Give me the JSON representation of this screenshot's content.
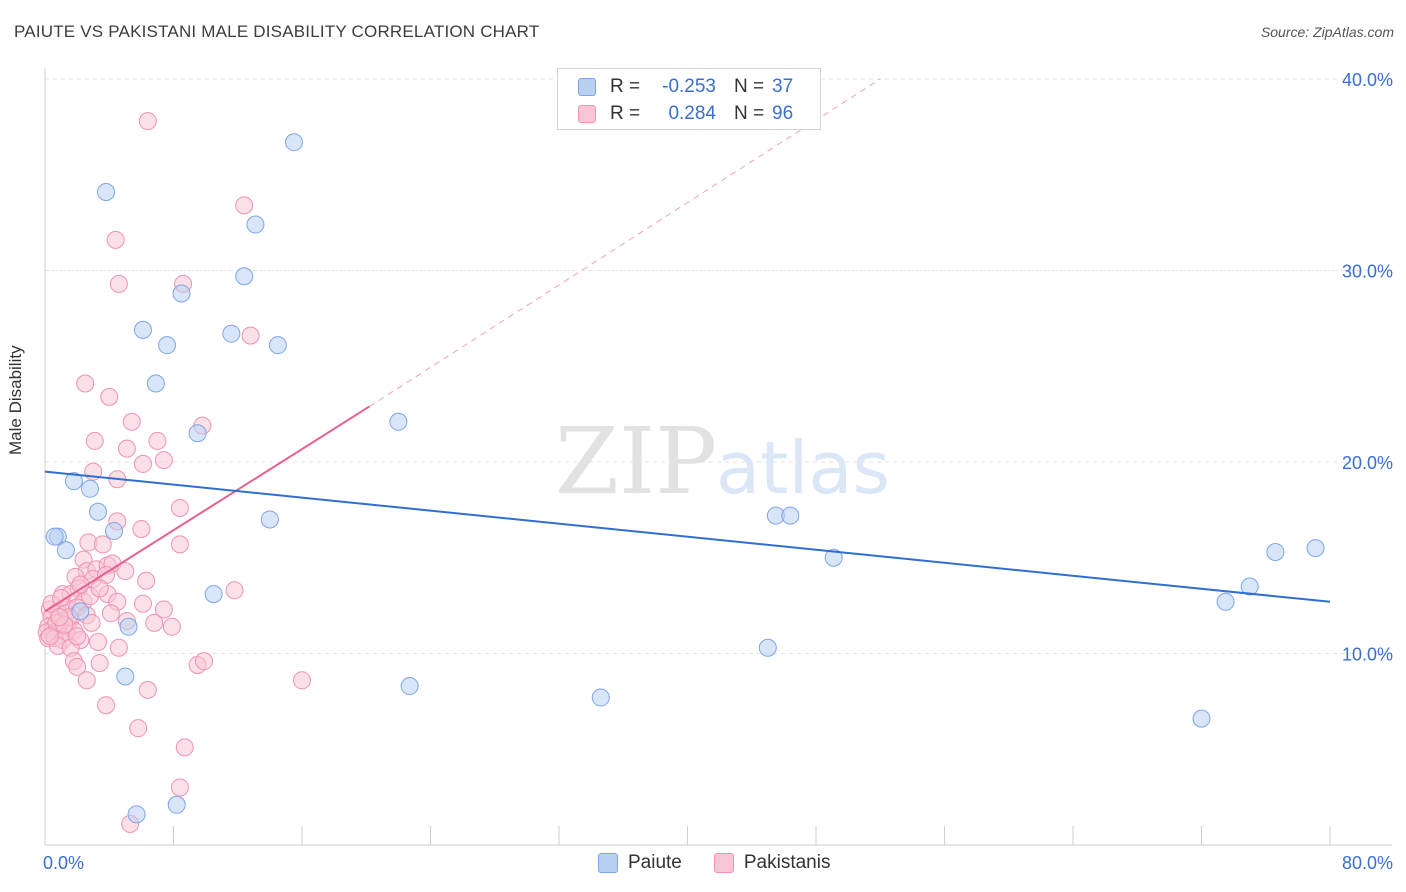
{
  "header": {
    "title": "PAIUTE VS PAKISTANI MALE DISABILITY CORRELATION CHART",
    "source": "Source: ZipAtlas.com"
  },
  "watermark": {
    "zip": "ZIP",
    "atlas": "atlas"
  },
  "legend": {
    "rows": [
      {
        "r_label": "R =",
        "r_value": "-0.253",
        "n_label": "N =",
        "n_value": "37"
      },
      {
        "r_label": "R =",
        "r_value": "0.284",
        "n_label": "N =",
        "n_value": "96"
      }
    ],
    "bottom": [
      "Paiute",
      "Pakistanis"
    ]
  },
  "colors": {
    "paiute_fill": "#b9d0f3",
    "paiute_stroke": "#7ea6e6",
    "paiute_line": "#2f6fd0",
    "pak_fill": "#f8c6d6",
    "pak_stroke": "#ef93b2",
    "pak_line": "#e8608f",
    "axis_text": "#3a6fcf",
    "grid": "#e3e3e3"
  },
  "chart_data": {
    "type": "scatter",
    "title": "PAIUTE VS PAKISTANI MALE DISABILITY CORRELATION CHART",
    "xlabel": "",
    "ylabel": "Male Disability",
    "xlim": [
      0,
      80
    ],
    "ylim": [
      0,
      40
    ],
    "x_tick_labels": [
      "0.0%",
      "80.0%"
    ],
    "y_tick_labels": [
      "10.0%",
      "20.0%",
      "30.0%",
      "40.0%"
    ],
    "y_ticks": [
      10,
      20,
      30,
      40
    ],
    "series": [
      {
        "name": "Paiute",
        "R": -0.253,
        "N": 37,
        "trend": {
          "x": [
            0,
            80
          ],
          "y": [
            19.5,
            12.7
          ]
        },
        "points": [
          [
            3.8,
            34.1
          ],
          [
            15.5,
            36.7
          ],
          [
            13.1,
            32.4
          ],
          [
            8.5,
            28.8
          ],
          [
            12.4,
            29.7
          ],
          [
            6.1,
            26.9
          ],
          [
            7.6,
            26.1
          ],
          [
            11.6,
            26.7
          ],
          [
            14.5,
            26.1
          ],
          [
            6.9,
            24.1
          ],
          [
            9.5,
            21.5
          ],
          [
            22.0,
            22.1
          ],
          [
            1.8,
            19.0
          ],
          [
            2.8,
            18.6
          ],
          [
            3.3,
            17.4
          ],
          [
            4.3,
            16.4
          ],
          [
            14.0,
            17.0
          ],
          [
            0.8,
            16.1
          ],
          [
            1.3,
            15.4
          ],
          [
            45.5,
            17.2
          ],
          [
            46.4,
            17.2
          ],
          [
            49.1,
            15.0
          ],
          [
            76.6,
            15.3
          ],
          [
            79.1,
            15.5
          ],
          [
            75.0,
            13.5
          ],
          [
            73.5,
            12.7
          ],
          [
            10.5,
            13.1
          ],
          [
            2.2,
            12.2
          ],
          [
            5.2,
            11.4
          ],
          [
            45.0,
            10.3
          ],
          [
            5.0,
            8.8
          ],
          [
            22.7,
            8.3
          ],
          [
            34.6,
            7.7
          ],
          [
            72.0,
            6.6
          ],
          [
            8.2,
            2.1
          ],
          [
            5.7,
            1.6
          ],
          [
            0.6,
            16.1
          ]
        ]
      },
      {
        "name": "Pakistanis",
        "R": 0.284,
        "N": 96,
        "trend": {
          "x": [
            0,
            20.2
          ],
          "y": [
            12.2,
            22.9
          ]
        },
        "trend_extension": {
          "x": [
            20.2,
            52
          ],
          "y": [
            22.9,
            40.0
          ]
        },
        "points": [
          [
            6.4,
            37.8
          ],
          [
            12.4,
            33.4
          ],
          [
            4.4,
            31.6
          ],
          [
            4.6,
            29.3
          ],
          [
            8.6,
            29.3
          ],
          [
            12.8,
            26.6
          ],
          [
            2.5,
            24.1
          ],
          [
            4.0,
            23.4
          ],
          [
            5.4,
            22.1
          ],
          [
            9.8,
            21.9
          ],
          [
            3.1,
            21.1
          ],
          [
            7.0,
            21.1
          ],
          [
            5.1,
            20.7
          ],
          [
            7.4,
            20.1
          ],
          [
            6.1,
            19.9
          ],
          [
            3.0,
            19.5
          ],
          [
            4.5,
            19.1
          ],
          [
            8.4,
            17.6
          ],
          [
            4.5,
            16.9
          ],
          [
            6.0,
            16.5
          ],
          [
            2.7,
            15.8
          ],
          [
            3.6,
            15.7
          ],
          [
            8.4,
            15.7
          ],
          [
            2.4,
            14.9
          ],
          [
            2.6,
            14.3
          ],
          [
            3.2,
            14.4
          ],
          [
            3.9,
            14.6
          ],
          [
            4.2,
            14.7
          ],
          [
            1.9,
            14.0
          ],
          [
            3.0,
            13.9
          ],
          [
            3.8,
            14.1
          ],
          [
            2.1,
            13.4
          ],
          [
            6.3,
            13.8
          ],
          [
            1.1,
            13.1
          ],
          [
            1.6,
            13.1
          ],
          [
            3.9,
            13.1
          ],
          [
            11.8,
            13.3
          ],
          [
            2.4,
            12.7
          ],
          [
            4.5,
            12.7
          ],
          [
            6.1,
            12.6
          ],
          [
            1.3,
            12.4
          ],
          [
            0.3,
            12.3
          ],
          [
            0.8,
            12.2
          ],
          [
            1.3,
            12.1
          ],
          [
            2.0,
            12.4
          ],
          [
            7.4,
            12.3
          ],
          [
            2.6,
            12.0
          ],
          [
            0.4,
            11.9
          ],
          [
            1.6,
            11.8
          ],
          [
            0.2,
            11.4
          ],
          [
            0.5,
            11.3
          ],
          [
            0.9,
            11.3
          ],
          [
            1.4,
            11.4
          ],
          [
            2.9,
            11.6
          ],
          [
            5.1,
            11.7
          ],
          [
            0.1,
            11.1
          ],
          [
            0.5,
            11.0
          ],
          [
            0.9,
            11.0
          ],
          [
            1.3,
            11.1
          ],
          [
            1.8,
            11.2
          ],
          [
            7.9,
            11.4
          ],
          [
            0.2,
            10.8
          ],
          [
            0.6,
            10.8
          ],
          [
            1.1,
            10.7
          ],
          [
            2.2,
            10.7
          ],
          [
            3.3,
            10.6
          ],
          [
            0.8,
            10.4
          ],
          [
            1.6,
            10.3
          ],
          [
            4.6,
            10.3
          ],
          [
            1.8,
            9.6
          ],
          [
            3.4,
            9.5
          ],
          [
            9.5,
            9.4
          ],
          [
            2.0,
            9.3
          ],
          [
            9.9,
            9.6
          ],
          [
            2.6,
            8.6
          ],
          [
            16.0,
            8.6
          ],
          [
            6.4,
            8.1
          ],
          [
            3.8,
            7.3
          ],
          [
            5.8,
            6.1
          ],
          [
            8.7,
            5.1
          ],
          [
            8.4,
            3.0
          ],
          [
            5.3,
            1.1
          ],
          [
            0.4,
            12.6
          ],
          [
            1.0,
            12.9
          ],
          [
            2.8,
            13.0
          ],
          [
            5.0,
            14.3
          ],
          [
            0.7,
            11.6
          ],
          [
            1.5,
            11.9
          ],
          [
            2.2,
            13.6
          ],
          [
            3.4,
            13.4
          ],
          [
            4.1,
            12.1
          ],
          [
            0.3,
            10.9
          ],
          [
            1.2,
            11.5
          ],
          [
            2.0,
            10.9
          ],
          [
            6.8,
            11.6
          ],
          [
            0.9,
            11.9
          ]
        ]
      }
    ]
  }
}
